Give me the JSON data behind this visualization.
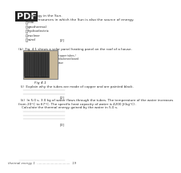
{
  "bg_color": "#ffffff",
  "title_text": "thermal energy 1",
  "page_number": "19",
  "pdf_watermark": "PDF",
  "top_text_line1": "al energy in the Sun.",
  "top_text_line2": "e three resources in which the Sun is also the source of energy.",
  "checkboxes": [
    "coal",
    "geothermal",
    "hydroelectric",
    "nuclear",
    "wind"
  ],
  "checkbox_mark": "[2]",
  "fig_label": "(b)  Fig. 4.1 shows a solar panel heating panel on the roof of a house.",
  "fig_number": "Fig 4.1",
  "question_a_prefix": "(i)",
  "question_a_text": "Explain why the tubes are made of copper and are painted black.",
  "question_a_lines": 2,
  "question_a_mark": "[2]",
  "question_b_prefix": "(ii)",
  "question_b_text": "In 5.0 s, 3.0 kg of water flows through the tubes. The temperature of the water increases\nfrom 20°C to 67°C. The specific heat capacity of water is 4200 J/(kg°C).",
  "question_b_subtext": "Calculate the thermal energy gained by the water in 5.0 s.",
  "question_b_mark": "[3]",
  "watermark_bg": "#222222",
  "watermark_fg": "#ffffff",
  "text_color": "#333333",
  "line_color": "#aaaaaa",
  "footer_color": "#555555",
  "panel_outer_color": "#c8b89a",
  "panel_inner_color": "#1a1a1a",
  "panel_tube_color": "#2d2d2d"
}
